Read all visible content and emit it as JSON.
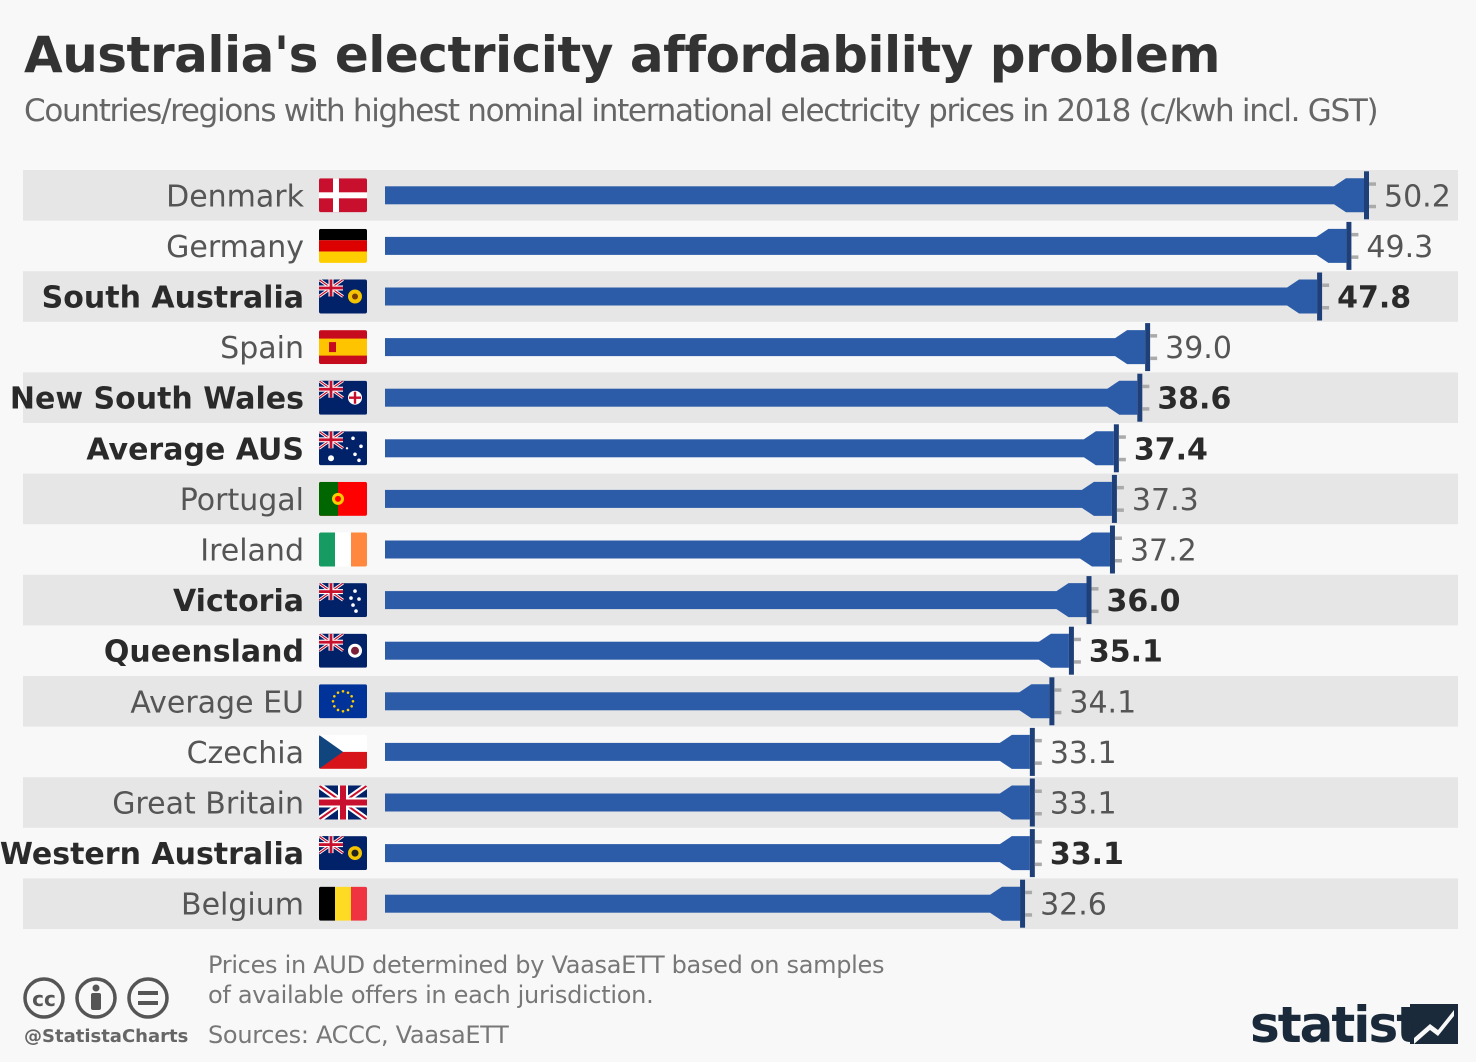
{
  "header": {
    "title": "Australia's electricity affordability problem",
    "subtitle": "Countries/regions with highest nominal international electricity prices in 2018 (c/kwh incl. GST)"
  },
  "chart_data": {
    "type": "bar",
    "orientation": "horizontal",
    "title": "Australia's electricity affordability problem",
    "subtitle": "Countries/regions with highest nominal international electricity prices in 2018 (c/kwh incl. GST)",
    "categories": [
      "Denmark",
      "Germany",
      "South Australia",
      "Spain",
      "New South Wales",
      "Average AUS",
      "Portugal",
      "Ireland",
      "Victoria",
      "Queensland",
      "Average EU",
      "Czechia",
      "Great Britain",
      "Western Australia",
      "Belgium"
    ],
    "values": [
      50.2,
      49.3,
      47.8,
      39.0,
      38.6,
      37.4,
      37.3,
      37.2,
      36.0,
      35.1,
      34.1,
      33.1,
      33.1,
      33.1,
      32.6
    ],
    "value_labels": [
      "50.2",
      "49.3",
      "47.8",
      "39.0",
      "38.6",
      "37.4",
      "37.3",
      "37.2",
      "36.0",
      "35.1",
      "34.1",
      "33.1",
      "33.1",
      "33.1",
      "32.6"
    ],
    "highlighted": [
      "South Australia",
      "New South Wales",
      "Average AUS",
      "Victoria",
      "Queensland",
      "Western Australia"
    ],
    "flags": [
      "denmark-flag",
      "germany-flag",
      "south-australia-flag",
      "spain-flag",
      "new-south-wales-flag",
      "australia-flag",
      "portugal-flag",
      "ireland-flag",
      "victoria-flag",
      "queensland-flag",
      "eu-flag",
      "czechia-flag",
      "great-britain-flag",
      "western-australia-flag",
      "belgium-flag"
    ],
    "xlim": [
      0,
      50.2
    ],
    "grid": false,
    "legend": "none",
    "bar_style": "power-plug",
    "bar_color": "#2c5ca8",
    "stripe_color": "#e6e6e6"
  },
  "footer": {
    "note_line1": "Prices in AUD determined by VaasaETT based on samples",
    "note_line2": "of available offers in each jurisdiction.",
    "sources": "Sources: ACCC, VaasaETT",
    "handle": "@StatistaCharts",
    "brand": "statista"
  }
}
